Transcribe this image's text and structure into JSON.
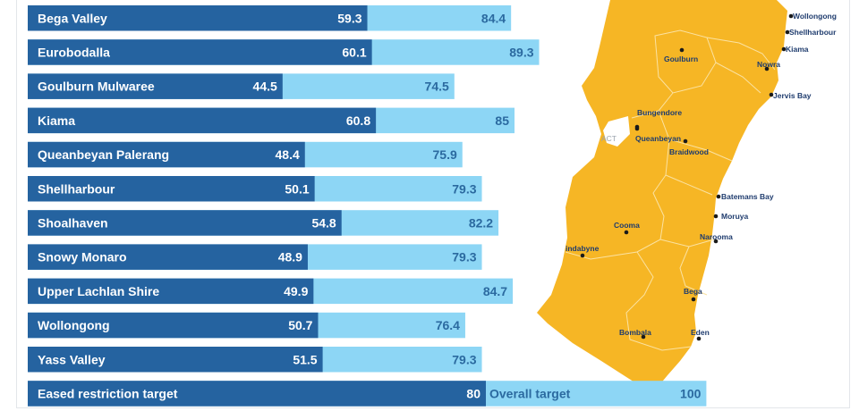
{
  "chart_data": {
    "type": "bar",
    "orientation": "horizontal",
    "stacked_overlay": true,
    "categories": [
      "Bega Valley",
      "Eurobodalla",
      "Goulburn Mulwaree",
      "Kiama",
      "Queanbeyan Palerang",
      "Shellharbour",
      "Shoalhaven",
      "Snowy Monaro",
      "Upper Lachlan Shire",
      "Wollongong",
      "Yass Valley"
    ],
    "series": [
      {
        "values": [
          59.3,
          60.1,
          44.5,
          60.8,
          48.4,
          50.1,
          54.8,
          48.9,
          49.9,
          50.7,
          51.5
        ]
      },
      {
        "values": [
          84.4,
          89.3,
          74.5,
          85,
          75.9,
          79.3,
          82.2,
          79.3,
          84.7,
          76.4,
          79.3
        ]
      }
    ],
    "target_row": {
      "label": "Eased restriction target",
      "value": 80,
      "overall_label": "Overall target",
      "overall_value": 100
    },
    "xlim": [
      0,
      100
    ],
    "colors": {
      "dark": "#2563a0",
      "light": "#8dd6f5",
      "map": "#f6b625",
      "map_line": "#f9d98a"
    }
  },
  "map": {
    "outside_label": "ACT",
    "places": [
      "Wollongong",
      "Shellharbour",
      "Kiama",
      "Nowra",
      "Goulburn",
      "Jervis Bay",
      "Bungendore",
      "Queanbeyan",
      "Braidwood",
      "Batemans Bay",
      "Moruya",
      "Cooma",
      "Narooma",
      "indabyne",
      "Bega",
      "Bombala",
      "Eden"
    ]
  }
}
